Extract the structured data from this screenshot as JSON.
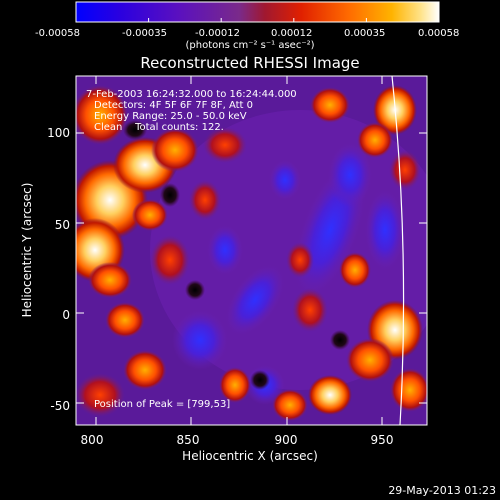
{
  "colorbar": {
    "tick_labels": [
      "-0.00058",
      "-0.00035",
      "-0.00012",
      "0.00012",
      "0.00035",
      "0.00058"
    ],
    "unit_label": "(photons cm⁻² s⁻¹ asec⁻²)",
    "colors": [
      "#0000ff",
      "#3a00cc",
      "#6a1fb0",
      "#7a2a8a",
      "#b11f2a",
      "#e02000",
      "#ff6a00",
      "#ffb300",
      "#ffe38a",
      "#ffffff"
    ]
  },
  "title": "Reconstructed RHESSI Image",
  "info": {
    "time_range": "7-Feb-2003 16:24:32.000 to 16:24:44.000",
    "detectors": "Detectors: 4F 5F 6F 7F 8F, Att 0",
    "energy": "Energy Range: 25.0 - 50.0 keV",
    "counts": "Clean    Total counts: 122."
  },
  "peak_label": "Position of Peak = [799,53]",
  "axes": {
    "xlabel": "Heliocentric X (arcsec)",
    "ylabel": "Heliocentric Y (arcsec)",
    "xticks": [
      "800",
      "850",
      "900",
      "950"
    ],
    "yticks": [
      "100",
      "50",
      "0",
      "-50"
    ],
    "x_range": [
      788,
      985
    ],
    "y_range": [
      -58,
      137
    ]
  },
  "footer_date": "29-May-2013 01:23"
}
